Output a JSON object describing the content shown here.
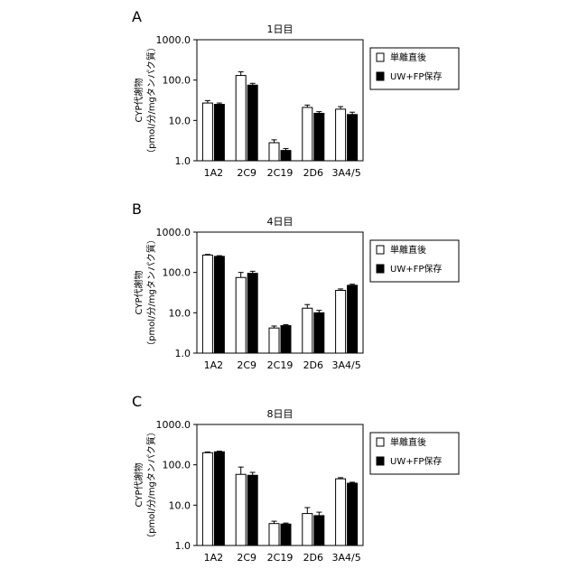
{
  "chart_data": [
    {
      "type": "bar",
      "panel": "A",
      "title": "1日目",
      "ylabel": [
        "CYP代謝物",
        "（pmol/分/mgタンパク質）"
      ],
      "xlabel": "",
      "yscale": "log",
      "ylim": [
        1.0,
        1000.0
      ],
      "yticks": [
        "1000.0",
        "100.0",
        "10.0",
        "1.0"
      ],
      "categories": [
        "1A2",
        "2C9",
        "2C19",
        "2D6",
        "3A4/5"
      ],
      "series": [
        {
          "name": "単離直後",
          "color": "#ffffff",
          "values": [
            27,
            130,
            2.8,
            21,
            19
          ],
          "errors": [
            4,
            30,
            0.5,
            3,
            3
          ]
        },
        {
          "name": "UW+FP保存",
          "color": "#000000",
          "values": [
            25,
            75,
            1.8,
            15,
            14
          ],
          "errors": [
            2,
            8,
            0.2,
            1.5,
            2
          ]
        }
      ],
      "legend_position": "right"
    },
    {
      "type": "bar",
      "panel": "B",
      "title": "4日目",
      "ylabel": [
        "CYP代謝物",
        "（pmol/分/mgタンパク質）"
      ],
      "xlabel": "",
      "yscale": "log",
      "ylim": [
        1.0,
        1000.0
      ],
      "yticks": [
        "1000.0",
        "100.0",
        "10.0",
        "1.0"
      ],
      "categories": [
        "1A2",
        "2C9",
        "2C19",
        "2D6",
        "3A4/5"
      ],
      "series": [
        {
          "name": "単離直後",
          "color": "#ffffff",
          "values": [
            270,
            75,
            4.2,
            13,
            36
          ],
          "errors": [
            10,
            25,
            0.5,
            3,
            3
          ]
        },
        {
          "name": "UW+FP保存",
          "color": "#000000",
          "values": [
            250,
            95,
            4.8,
            10,
            48
          ],
          "errors": [
            10,
            12,
            0.3,
            1.5,
            3
          ]
        }
      ],
      "legend_position": "right"
    },
    {
      "type": "bar",
      "panel": "C",
      "title": "8日目",
      "ylabel": [
        "CYP代謝物",
        "（pmol/分/mgタンパク質）"
      ],
      "xlabel": "",
      "yscale": "log",
      "ylim": [
        1.0,
        1000.0
      ],
      "yticks": [
        "1000.0",
        "100.0",
        "10.0",
        "1.0"
      ],
      "categories": [
        "1A2",
        "2C9",
        "2C19",
        "2D6",
        "3A4/5"
      ],
      "series": [
        {
          "name": "単離直後",
          "color": "#ffffff",
          "values": [
            200,
            58,
            3.5,
            6.2,
            45
          ],
          "errors": [
            8,
            30,
            0.5,
            2.5,
            3
          ]
        },
        {
          "name": "UW+FP保存",
          "color": "#000000",
          "values": [
            210,
            55,
            3.4,
            5.5,
            35
          ],
          "errors": [
            8,
            10,
            0.2,
            1.2,
            2
          ]
        }
      ],
      "legend_position": "right"
    }
  ]
}
